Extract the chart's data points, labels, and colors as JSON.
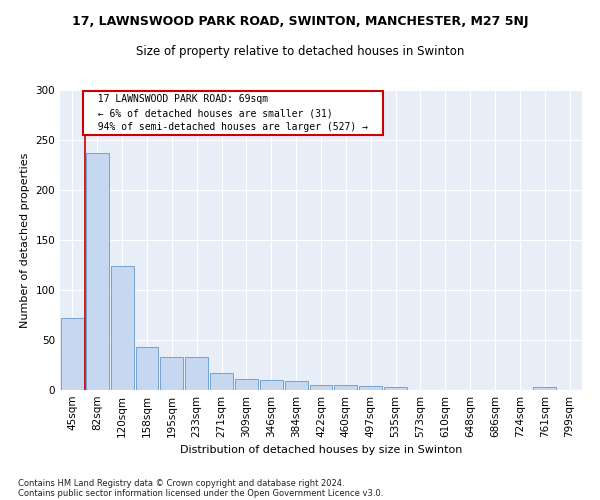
{
  "title1": "17, LAWNSWOOD PARK ROAD, SWINTON, MANCHESTER, M27 5NJ",
  "title2": "Size of property relative to detached houses in Swinton",
  "xlabel": "Distribution of detached houses by size in Swinton",
  "ylabel": "Number of detached properties",
  "footnote1": "Contains HM Land Registry data © Crown copyright and database right 2024.",
  "footnote2": "Contains public sector information licensed under the Open Government Licence v3.0.",
  "categories": [
    "45sqm",
    "82sqm",
    "120sqm",
    "158sqm",
    "195sqm",
    "233sqm",
    "271sqm",
    "309sqm",
    "346sqm",
    "384sqm",
    "422sqm",
    "460sqm",
    "497sqm",
    "535sqm",
    "573sqm",
    "610sqm",
    "648sqm",
    "686sqm",
    "724sqm",
    "761sqm",
    "799sqm"
  ],
  "values": [
    72,
    237,
    124,
    43,
    33,
    33,
    17,
    11,
    10,
    9,
    5,
    5,
    4,
    3,
    0,
    0,
    0,
    0,
    0,
    3,
    0
  ],
  "bar_color": "#c5d8f0",
  "bar_edgecolor": "#6699cc",
  "annotation_text": "  17 LAWNSWOOD PARK ROAD: 69sqm  \n  ← 6% of detached houses are smaller (31)  \n  94% of semi-detached houses are larger (527) →  ",
  "annotation_box_edgecolor": "#cc0000",
  "red_line_x": 0.5,
  "ylim": [
    0,
    300
  ],
  "yticks": [
    0,
    50,
    100,
    150,
    200,
    250,
    300
  ],
  "background_color": "#e8eef8",
  "title1_fontsize": 9,
  "title2_fontsize": 8.5,
  "xlabel_fontsize": 8,
  "ylabel_fontsize": 8,
  "tick_fontsize": 7.5,
  "footnote_fontsize": 6
}
